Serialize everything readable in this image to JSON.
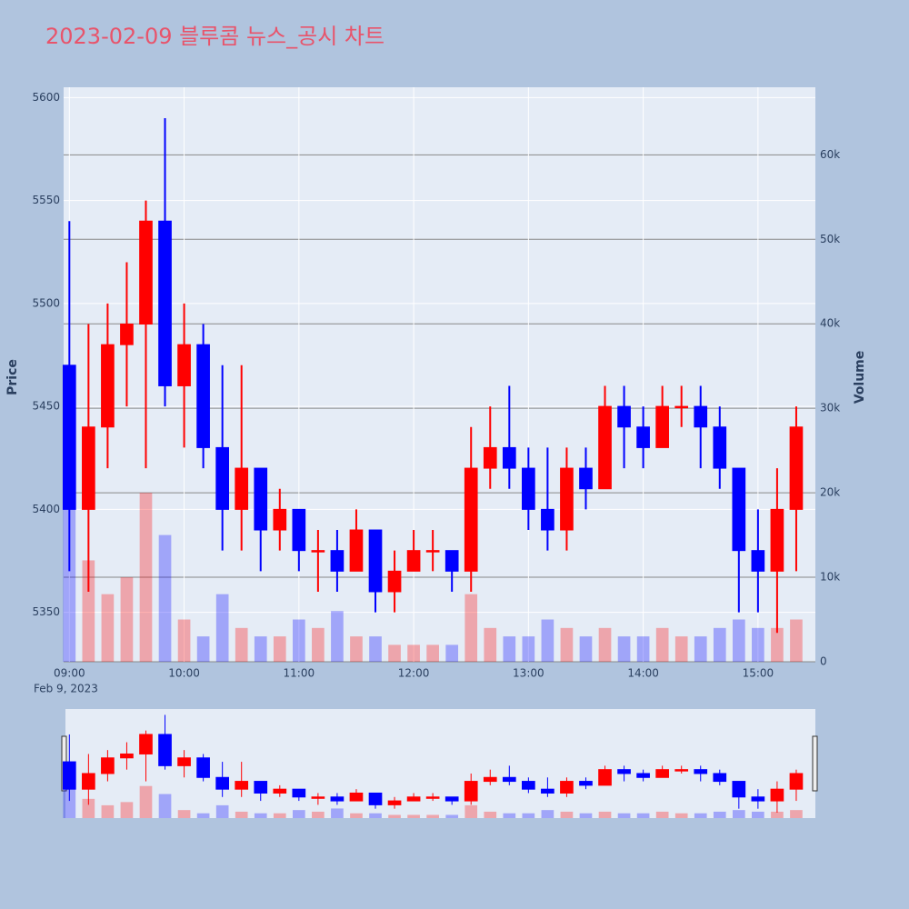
{
  "chart_data": {
    "type": "candlestick",
    "title": "2023-02-09 블루콤 뉴스_공시 차트",
    "y_label": "Price",
    "y2_label": "Volume",
    "x_date_label": "Feb 9, 2023",
    "increasing_color": "#ff0000",
    "decreasing_color": "#0000ff",
    "xlim": [
      "2023-02-09 08:57",
      "2023-02-09 15:30"
    ],
    "xticks": [
      {
        "value": "2023-02-09 09:00",
        "label": "09:00"
      },
      {
        "value": "2023-02-09 10:00",
        "label": "10:00"
      },
      {
        "value": "2023-02-09 11:00",
        "label": "11:00"
      },
      {
        "value": "2023-02-09 12:00",
        "label": "12:00"
      },
      {
        "value": "2023-02-09 13:00",
        "label": "13:00"
      },
      {
        "value": "2023-02-09 14:00",
        "label": "14:00"
      },
      {
        "value": "2023-02-09 15:00",
        "label": "15:00"
      }
    ],
    "ylim": [
      5326,
      5605
    ],
    "yticks": [
      5350,
      5400,
      5450,
      5500,
      5550,
      5600
    ],
    "y2lim": [
      0,
      68000
    ],
    "y2ticks": [
      0,
      {
        "value": 10000,
        "label": "10k"
      },
      {
        "value": 20000,
        "label": "20k"
      },
      {
        "value": 30000,
        "label": "30k"
      },
      {
        "value": 40000,
        "label": "40k"
      },
      {
        "value": 50000,
        "label": "50k"
      },
      {
        "value": 60000,
        "label": "60k"
      }
    ],
    "x": [
      "2023-02-09 09:00",
      "2023-02-09 09:10",
      "2023-02-09 09:20",
      "2023-02-09 09:30",
      "2023-02-09 09:40",
      "2023-02-09 09:50",
      "2023-02-09 10:00",
      "2023-02-09 10:10",
      "2023-02-09 10:20",
      "2023-02-09 10:30",
      "2023-02-09 10:40",
      "2023-02-09 10:50",
      "2023-02-09 11:00",
      "2023-02-09 11:10",
      "2023-02-09 11:20",
      "2023-02-09 11:30",
      "2023-02-09 11:40",
      "2023-02-09 11:50",
      "2023-02-09 12:00",
      "2023-02-09 12:10",
      "2023-02-09 12:20",
      "2023-02-09 12:30",
      "2023-02-09 12:40",
      "2023-02-09 12:50",
      "2023-02-09 13:00",
      "2023-02-09 13:10",
      "2023-02-09 13:20",
      "2023-02-09 13:30",
      "2023-02-09 13:40",
      "2023-02-09 13:50",
      "2023-02-09 14:00",
      "2023-02-09 14:10",
      "2023-02-09 14:20",
      "2023-02-09 14:30",
      "2023-02-09 14:40",
      "2023-02-09 14:50",
      "2023-02-09 15:00",
      "2023-02-09 15:10",
      "2023-02-09 15:20"
    ],
    "open": [
      5470,
      5400,
      5440,
      5480,
      5490,
      5540,
      5460,
      5480,
      5430,
      5400,
      5420,
      5390,
      5400,
      5380,
      5380,
      5370,
      5390,
      5360,
      5370,
      5380,
      5380,
      5370,
      5420,
      5430,
      5420,
      5400,
      5390,
      5420,
      5410,
      5450,
      5440,
      5430,
      5450,
      5450,
      5440,
      5420,
      5380,
      5370,
      5400
    ],
    "high": [
      5540,
      5490,
      5500,
      5520,
      5550,
      5590,
      5500,
      5490,
      5470,
      5470,
      5420,
      5410,
      5400,
      5390,
      5390,
      5400,
      5390,
      5380,
      5390,
      5390,
      5380,
      5440,
      5450,
      5460,
      5430,
      5430,
      5430,
      5430,
      5460,
      5460,
      5450,
      5460,
      5460,
      5460,
      5450,
      5420,
      5400,
      5420,
      5450
    ],
    "low": [
      5370,
      5360,
      5420,
      5450,
      5420,
      5450,
      5430,
      5420,
      5380,
      5380,
      5370,
      5380,
      5370,
      5360,
      5360,
      5370,
      5350,
      5350,
      5370,
      5370,
      5360,
      5360,
      5410,
      5410,
      5390,
      5380,
      5380,
      5400,
      5410,
      5420,
      5420,
      5430,
      5440,
      5420,
      5410,
      5350,
      5350,
      5340,
      5370
    ],
    "close": [
      5400,
      5440,
      5480,
      5490,
      5540,
      5460,
      5480,
      5430,
      5400,
      5420,
      5390,
      5400,
      5380,
      5380,
      5370,
      5390,
      5360,
      5370,
      5380,
      5380,
      5370,
      5420,
      5430,
      5420,
      5400,
      5390,
      5420,
      5410,
      5450,
      5440,
      5430,
      5450,
      5450,
      5440,
      5420,
      5380,
      5370,
      5400,
      5440
    ],
    "volume": [
      30000,
      12000,
      8000,
      10000,
      20000,
      15000,
      5000,
      3000,
      8000,
      4000,
      3000,
      3000,
      5000,
      4000,
      6000,
      3000,
      3000,
      2000,
      2000,
      2000,
      2000,
      8000,
      4000,
      3000,
      3000,
      5000,
      4000,
      3000,
      4000,
      3000,
      3000,
      4000,
      3000,
      3000,
      4000,
      5000,
      4000,
      4000,
      5000
    ]
  }
}
